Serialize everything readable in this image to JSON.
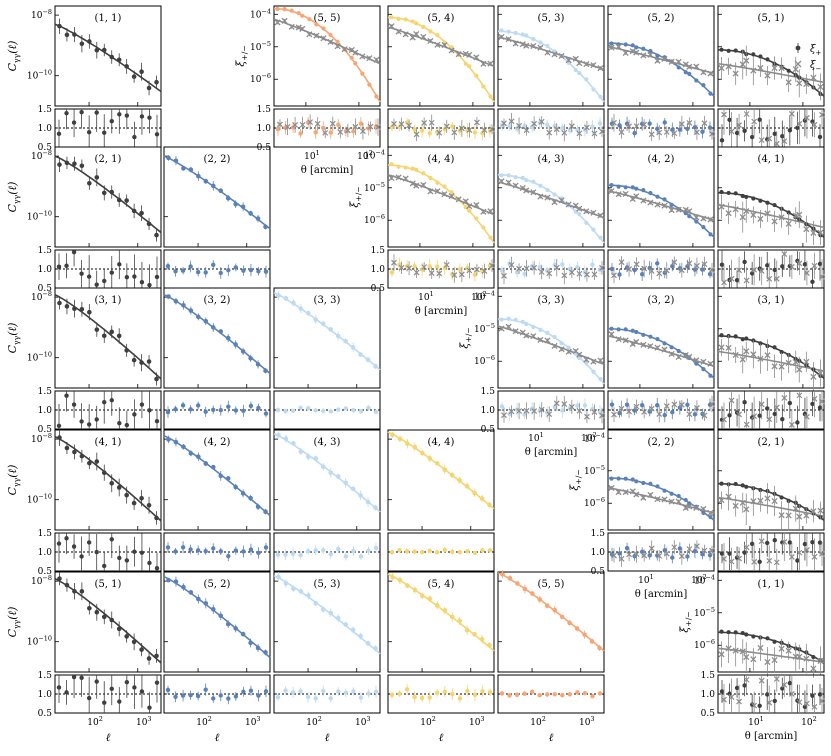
{
  "figure": {
    "left_ylabel": "C_{γγ}(ℓ)",
    "left_xlabel": "ℓ",
    "right_ylabel": "ξ_{+/−}",
    "right_xlabel": "θ [arcmin]",
    "legend": [
      "ξ_+",
      "ξ_−"
    ],
    "ratio_ticks": [
      "1.5",
      "1.0",
      "0.5"
    ]
  },
  "colors": {
    "1": "#3f3f3f",
    "2": "#5b82b8",
    "3": "#bcdaf3",
    "4": "#f4d56e",
    "5": "#f6a675",
    "xi_minus": "#8c8c8c",
    "axis": "#000000"
  },
  "chart_data": [
    {
      "type": "scatter",
      "name": "harmonic-space C_ell panels (lower triangle)",
      "xlabel": "ℓ",
      "ylabel": "C_{γγ}(ℓ)",
      "xscale": "log",
      "yscale": "log",
      "xlim": [
        20,
        3000
      ],
      "ylim": [
        1e-11,
        2e-08
      ],
      "x_ticks": [
        "10^2",
        "10^3"
      ],
      "y_ticks": [
        "10^-8",
        "10^-10"
      ],
      "ratio_ylim": [
        0.5,
        1.5
      ],
      "panels": [
        {
          "label": "(1, 1)",
          "i": 1,
          "j": 1,
          "y_at_xmin": 5e-09,
          "y_at_xmax": 3e-11
        },
        {
          "label": "(2, 1)",
          "i": 2,
          "j": 1,
          "y_at_xmin": 1e-08,
          "y_at_xmax": 3e-11
        },
        {
          "label": "(2, 2)",
          "i": 2,
          "j": 2,
          "y_at_xmin": 1e-08,
          "y_at_xmax": 4e-11
        },
        {
          "label": "(3, 1)",
          "i": 3,
          "j": 1,
          "y_at_xmin": 1.2e-08,
          "y_at_xmax": 2e-11
        },
        {
          "label": "(3, 2)",
          "i": 3,
          "j": 2,
          "y_at_xmin": 1.2e-08,
          "y_at_xmax": 3e-11
        },
        {
          "label": "(3, 3)",
          "i": 3,
          "j": 3,
          "y_at_xmin": 1.4e-08,
          "y_at_xmax": 4e-11
        },
        {
          "label": "(4, 1)",
          "i": 4,
          "j": 1,
          "y_at_xmin": 1.2e-08,
          "y_at_xmax": 2e-11
        },
        {
          "label": "(4, 2)",
          "i": 4,
          "j": 2,
          "y_at_xmin": 1.3e-08,
          "y_at_xmax": 3e-11
        },
        {
          "label": "(4, 3)",
          "i": 4,
          "j": 3,
          "y_at_xmin": 1.5e-08,
          "y_at_xmax": 4e-11
        },
        {
          "label": "(4, 4)",
          "i": 4,
          "j": 4,
          "y_at_xmin": 1.7e-08,
          "y_at_xmax": 5e-11
        },
        {
          "label": "(5, 1)",
          "i": 5,
          "j": 1,
          "y_at_xmin": 1.2e-08,
          "y_at_xmax": 2e-11
        },
        {
          "label": "(5, 2)",
          "i": 5,
          "j": 2,
          "y_at_xmin": 1.4e-08,
          "y_at_xmax": 3e-11
        },
        {
          "label": "(5, 3)",
          "i": 5,
          "j": 3,
          "y_at_xmin": 1.5e-08,
          "y_at_xmax": 4e-11
        },
        {
          "label": "(5, 4)",
          "i": 5,
          "j": 4,
          "y_at_xmin": 1.7e-08,
          "y_at_xmax": 5e-11
        },
        {
          "label": "(5, 5)",
          "i": 5,
          "j": 5,
          "y_at_xmin": 1.9e-08,
          "y_at_xmax": 5e-11
        }
      ]
    },
    {
      "type": "scatter",
      "name": "real-space xi_+/- panels (upper triangle)",
      "xlabel": "θ [arcmin]",
      "ylabel": "ξ_{+/−}",
      "xscale": "log",
      "yscale": "log",
      "xlim": [
        2.5,
        250
      ],
      "ylim": [
        1.5e-07,
        0.00018
      ],
      "x_ticks": [
        "10^1",
        "10^2"
      ],
      "y_ticks": [
        "10^-4",
        "10^-5",
        "10^-6"
      ],
      "ratio_ylim": [
        0.5,
        1.5
      ],
      "series": [
        "ξ_+",
        "ξ_−"
      ],
      "panels": [
        {
          "label": "(5, 5)",
          "i": 5,
          "j": 5,
          "xi_plus_at_xmin": 0.00015,
          "xi_plus_at_xmax": 2e-07,
          "xi_minus_at_xmin": 7e-05,
          "xi_minus_at_xmax": 3e-06
        },
        {
          "label": "(5, 4)",
          "i": 5,
          "j": 4,
          "xi_plus_at_xmin": 8e-05,
          "xi_plus_at_xmax": 2e-07,
          "xi_minus_at_xmin": 4e-05,
          "xi_minus_at_xmax": 2.5e-06
        },
        {
          "label": "(5, 3)",
          "i": 5,
          "j": 3,
          "xi_plus_at_xmin": 3e-05,
          "xi_plus_at_xmax": 2e-07,
          "xi_minus_at_xmin": 2e-05,
          "xi_minus_at_xmax": 2e-06
        },
        {
          "label": "(5, 2)",
          "i": 5,
          "j": 2,
          "xi_plus_at_xmin": 1.3e-05,
          "xi_plus_at_xmax": 3e-07,
          "xi_minus_at_xmin": 1e-05,
          "xi_minus_at_xmax": 1.5e-06
        },
        {
          "label": "(5, 1)",
          "i": 5,
          "j": 1,
          "xi_plus_at_xmin": 8e-06,
          "xi_plus_at_xmax": 3e-07,
          "xi_minus_at_xmin": 3e-06,
          "xi_minus_at_xmax": 8e-07
        },
        {
          "label": "(4, 4)",
          "i": 4,
          "j": 4,
          "xi_plus_at_xmin": 5e-05,
          "xi_plus_at_xmax": 2e-07,
          "xi_minus_at_xmin": 2.5e-05,
          "xi_minus_at_xmax": 1.5e-06
        },
        {
          "label": "(4, 3)",
          "i": 4,
          "j": 3,
          "xi_plus_at_xmin": 2.5e-05,
          "xi_plus_at_xmax": 2e-07,
          "xi_minus_at_xmin": 1.5e-05,
          "xi_minus_at_xmax": 1.2e-06
        },
        {
          "label": "(4, 2)",
          "i": 4,
          "j": 2,
          "xi_plus_at_xmin": 1.2e-05,
          "xi_plus_at_xmax": 3e-07,
          "xi_minus_at_xmin": 8e-06,
          "xi_minus_at_xmax": 1e-06
        },
        {
          "label": "(4, 1)",
          "i": 4,
          "j": 1,
          "xi_plus_at_xmin": 7e-06,
          "xi_plus_at_xmax": 3e-07,
          "xi_minus_at_xmin": 3e-06,
          "xi_minus_at_xmax": 6e-07
        },
        {
          "label": "(3, 3)",
          "i": 3,
          "j": 3,
          "xi_plus_at_xmin": 2e-05,
          "xi_plus_at_xmax": 2e-07,
          "xi_minus_at_xmin": 1.2e-05,
          "xi_minus_at_xmax": 8e-07
        },
        {
          "label": "(3, 2)",
          "i": 3,
          "j": 2,
          "xi_plus_at_xmin": 1e-05,
          "xi_plus_at_xmax": 3e-07,
          "xi_minus_at_xmin": 6e-06,
          "xi_minus_at_xmax": 7e-07
        },
        {
          "label": "(3, 1)",
          "i": 3,
          "j": 1,
          "xi_plus_at_xmin": 6e-06,
          "xi_plus_at_xmax": 3e-07,
          "xi_minus_at_xmin": 2e-06,
          "xi_minus_at_xmax": 5e-07
        },
        {
          "label": "(2, 2)",
          "i": 2,
          "j": 2,
          "xi_plus_at_xmin": 6e-06,
          "xi_plus_at_xmax": 3e-07,
          "xi_minus_at_xmin": 3e-06,
          "xi_minus_at_xmax": 5e-07
        },
        {
          "label": "(2, 1)",
          "i": 2,
          "j": 1,
          "xi_plus_at_xmin": 4e-06,
          "xi_plus_at_xmax": 3e-07,
          "xi_minus_at_xmin": 1.5e-06,
          "xi_minus_at_xmax": 4e-07
        },
        {
          "label": "(1, 1)",
          "i": 1,
          "j": 1,
          "xi_plus_at_xmin": 2.5e-06,
          "xi_plus_at_xmax": 3e-07,
          "xi_minus_at_xmin": 8e-07,
          "xi_minus_at_xmax": 3e-07
        }
      ]
    }
  ]
}
